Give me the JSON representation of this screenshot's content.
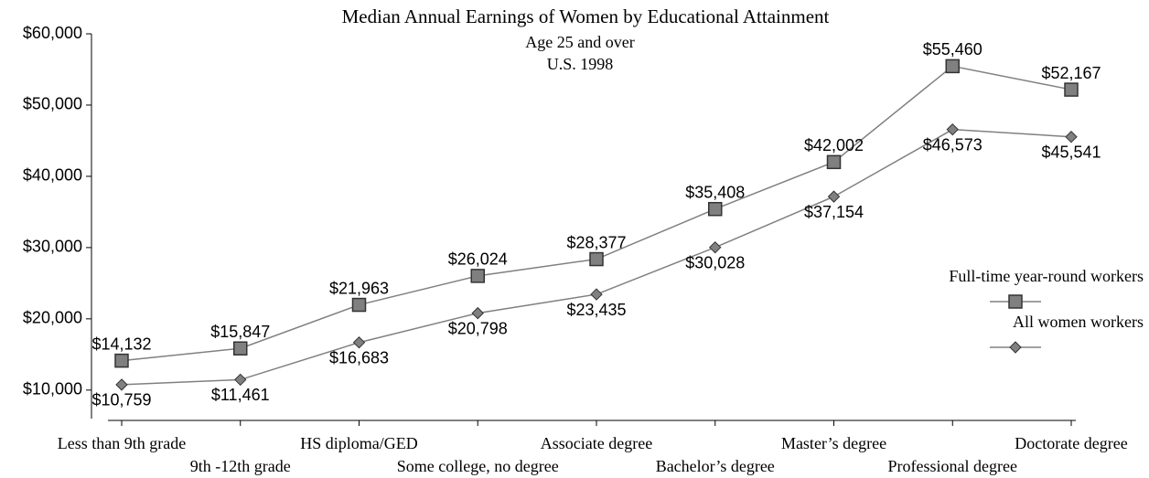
{
  "chart_data": {
    "type": "line",
    "title": "Median Annual Earnings of Women by Educational Attainment",
    "subtitle": [
      "Age 25 and over",
      "U.S. 1998"
    ],
    "categories": [
      "Less than 9th grade",
      "9th -12th grade",
      "HS diploma/GED",
      "Some college, no degree",
      "Associate degree",
      "Bachelor’s degree",
      "Master’s degree",
      "Professional degree",
      "Doctorate degree"
    ],
    "series": [
      {
        "name": "Full-time year-round workers",
        "color": "#808080",
        "marker": "square",
        "values": [
          14132,
          15847,
          21963,
          26024,
          28377,
          35408,
          42002,
          55460,
          52167
        ],
        "value_labels": [
          "$14,132",
          "$15,847",
          "$21,963",
          "$26,024",
          "$28,377",
          "$35,408",
          "$42,002",
          "$55,460",
          "$52,167"
        ]
      },
      {
        "name": "All women workers",
        "color": "#808080",
        "marker": "diamond",
        "values": [
          10759,
          11461,
          16683,
          20798,
          23435,
          30028,
          37154,
          46573,
          45541
        ],
        "value_labels": [
          "$10,759",
          "$11,461",
          "$16,683",
          "$20,798",
          "$23,435",
          "$30,028",
          "$37,154",
          "$46,573",
          "$45,541"
        ]
      }
    ],
    "ylim": [
      6000,
      60000
    ],
    "yticks": [
      {
        "value": 10000,
        "label": "$10,000"
      },
      {
        "value": 20000,
        "label": "$20,000"
      },
      {
        "value": 30000,
        "label": "$30,000"
      },
      {
        "value": 40000,
        "label": "$40,000"
      },
      {
        "value": 50000,
        "label": "$50,000"
      },
      {
        "value": 60000,
        "label": "$60,000"
      }
    ],
    "grid": false,
    "legend": "right"
  }
}
